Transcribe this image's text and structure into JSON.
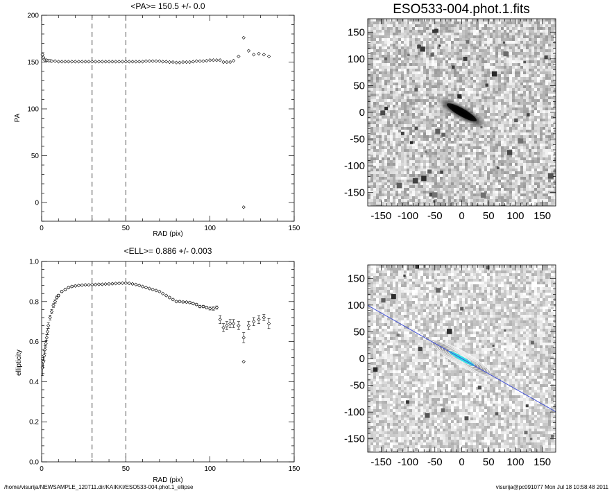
{
  "footer": {
    "path": "/home/visurija/NEWSAMPLE_120711.dir/KAIKKI/ESO533-004.phot.1_ellipse",
    "user_stamp": "visurija@pc091077  Mon Jul 18 10:58:48 2011"
  },
  "chart_data": [
    {
      "type": "scatter",
      "title": "<PA>= 150.5 +/-   0.0",
      "xlabel": "RAD (pix)",
      "ylabel": "PA",
      "xlim": [
        0,
        150
      ],
      "ylim": [
        -20,
        200
      ],
      "xticks": [
        "0",
        "50",
        "100",
        "150"
      ],
      "yticks": [
        "0",
        "50",
        "100",
        "150",
        "200"
      ],
      "vlines": [
        30,
        50
      ],
      "marker": "diamond",
      "series": [
        {
          "x": [
            0.5,
            1,
            1.5,
            2,
            3,
            4,
            5,
            6,
            8,
            10,
            12,
            14,
            16,
            18,
            20,
            22,
            24,
            26,
            28,
            30,
            32,
            34,
            36,
            38,
            40,
            42,
            44,
            46,
            48,
            50,
            52,
            54,
            56,
            58,
            60,
            62,
            64,
            66,
            68,
            70,
            72,
            74,
            76,
            78,
            80,
            82,
            84,
            86,
            88,
            90,
            92,
            94,
            96,
            98,
            100,
            102,
            104,
            106,
            108,
            110,
            112,
            114,
            117,
            120,
            120,
            123,
            126,
            129,
            132,
            135
          ],
          "y": [
            158,
            155,
            153,
            152,
            152,
            151.5,
            151.5,
            151,
            151,
            150.5,
            150.5,
            150.5,
            150.5,
            150.5,
            150.5,
            150.5,
            150.5,
            150.5,
            150.5,
            150.5,
            150.5,
            150.5,
            150.5,
            150.5,
            150.5,
            150.5,
            150.5,
            150.5,
            150.5,
            150.5,
            150.5,
            150.5,
            150.5,
            150.5,
            150.5,
            151,
            151,
            151,
            151,
            151,
            150.5,
            150.5,
            150,
            150,
            149.5,
            149.5,
            150,
            150,
            150,
            150.5,
            151,
            151,
            151,
            151.5,
            152,
            152,
            152,
            152,
            150,
            150,
            150,
            151.5,
            156,
            176,
            -5,
            162,
            158,
            159,
            158,
            156
          ]
        }
      ]
    },
    {
      "type": "scatter",
      "title": "<ELL>= 0.886 +/-  0.003",
      "xlabel": "RAD (pix)",
      "ylabel": "ellipticity",
      "xlim": [
        0,
        150
      ],
      "ylim": [
        0.0,
        1.0
      ],
      "xticks": [
        "0",
        "50",
        "100",
        "150"
      ],
      "yticks": [
        "0.0",
        "0.2",
        "0.4",
        "0.6",
        "0.8",
        "1.0"
      ],
      "vlines": [
        30,
        50
      ],
      "marker": "diamond",
      "series": [
        {
          "x": [
            0.5,
            1,
            1.5,
            2,
            2.5,
            3,
            3.5,
            4,
            5,
            6,
            7,
            8,
            9,
            10,
            12,
            14,
            16,
            18,
            20,
            22,
            24,
            26,
            28,
            30,
            32,
            34,
            36,
            38,
            40,
            42,
            44,
            46,
            48,
            50,
            52,
            54,
            56,
            58,
            60,
            62,
            64,
            66,
            68,
            70,
            72,
            74,
            76,
            78,
            80,
            82,
            84,
            86,
            88,
            90,
            92,
            94,
            96,
            98,
            100,
            102,
            104,
            106,
            108,
            110,
            112,
            114,
            117,
            120,
            120,
            123,
            126,
            129,
            132,
            135
          ],
          "y": [
            0.47,
            0.5,
            0.53,
            0.56,
            0.59,
            0.62,
            0.65,
            0.68,
            0.72,
            0.75,
            0.78,
            0.8,
            0.82,
            0.83,
            0.85,
            0.86,
            0.87,
            0.875,
            0.878,
            0.88,
            0.882,
            0.883,
            0.883,
            0.884,
            0.885,
            0.886,
            0.886,
            0.887,
            0.888,
            0.889,
            0.89,
            0.891,
            0.892,
            0.892,
            0.891,
            0.888,
            0.885,
            0.88,
            0.875,
            0.87,
            0.865,
            0.86,
            0.855,
            0.85,
            0.84,
            0.83,
            0.82,
            0.81,
            0.8,
            0.8,
            0.798,
            0.797,
            0.795,
            0.79,
            0.785,
            0.775,
            0.775,
            0.77,
            0.765,
            0.765,
            0.77,
            0.71,
            0.67,
            0.68,
            0.69,
            0.69,
            0.68,
            0.62,
            0.5,
            0.68,
            0.7,
            0.71,
            0.72,
            0.69
          ],
          "err": [
            0.04,
            0.03,
            0.025,
            0.02,
            0.018,
            0.016,
            0.015,
            0.014,
            0.012,
            0.01,
            0.009,
            0.008,
            0.007,
            0.006,
            0.005,
            0.005,
            0.004,
            0.004,
            0.004,
            0.003,
            0.003,
            0.003,
            0.003,
            0.003,
            0.003,
            0.003,
            0.003,
            0.003,
            0.003,
            0.003,
            0.003,
            0.003,
            0.003,
            0.003,
            0.003,
            0.003,
            0.003,
            0.003,
            0.003,
            0.003,
            0.003,
            0.003,
            0.003,
            0.003,
            0.003,
            0.003,
            0.004,
            0.004,
            0.004,
            0.004,
            0.004,
            0.004,
            0.005,
            0.005,
            0.005,
            0.006,
            0.006,
            0.006,
            0.007,
            0.008,
            0.008,
            0.02,
            0.02,
            0.02,
            0.02,
            0.02,
            0.02,
            0.025,
            0.0,
            0.02,
            0.02,
            0.02,
            0.015,
            0.025
          ]
        }
      ]
    },
    {
      "type": "heatmap",
      "title": "ESO533-004.phot.1.fits",
      "xlim": [
        -175,
        175
      ],
      "ylim": [
        -175,
        175
      ],
      "xticks": [
        "-150",
        "-100",
        "-50",
        "0",
        "50",
        "100",
        "150"
      ],
      "yticks": [
        "-150",
        "-100",
        "-50",
        "0",
        "50",
        "100",
        "150"
      ],
      "galaxy": {
        "pa_deg": 150.5,
        "ellipticity": 0.886
      },
      "colors": {
        "background": "#c8c8c8",
        "core": "#000000"
      }
    },
    {
      "type": "heatmap",
      "title": "",
      "xlim": [
        -175,
        175
      ],
      "ylim": [
        -175,
        175
      ],
      "xticks": [
        "-150",
        "-100",
        "-50",
        "0",
        "50",
        "100",
        "150"
      ],
      "yticks": [
        "-150",
        "-100",
        "-50",
        "0",
        "50",
        "100",
        "150"
      ],
      "galaxy": {
        "pa_deg": 150.5,
        "ellipticity": 0.886
      },
      "colors": {
        "background": "#c8c8c8",
        "contour": "#ffffff",
        "inner": "#33dde6",
        "line": "#3f4fd6"
      }
    }
  ]
}
